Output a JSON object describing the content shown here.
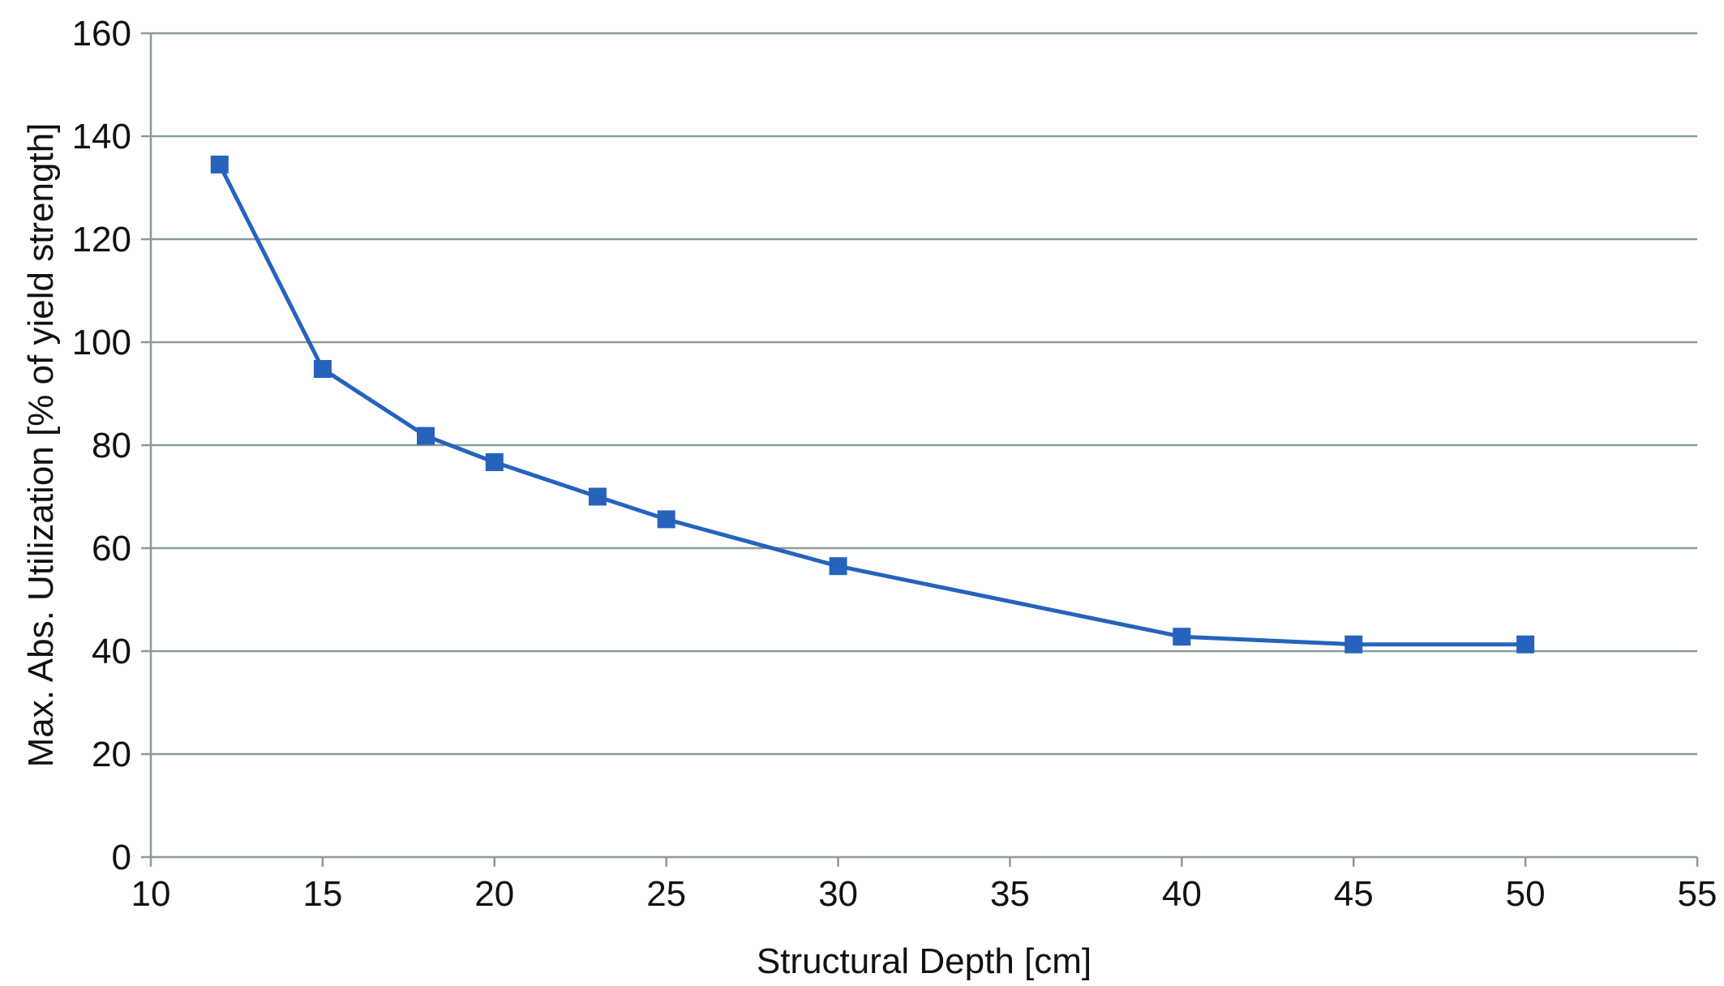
{
  "chart_data": {
    "type": "line",
    "title": "",
    "xlabel": "Structural Depth [cm]",
    "ylabel": "Max. Abs. Utilization [% of yield strength]",
    "xlim": [
      10,
      55
    ],
    "ylim": [
      0,
      160
    ],
    "xticks": [
      10,
      15,
      20,
      25,
      30,
      35,
      40,
      45,
      50,
      55
    ],
    "yticks": [
      0,
      20,
      40,
      60,
      80,
      100,
      120,
      140,
      160
    ],
    "grid": "horizontal",
    "legend": "none",
    "series_color": "#2563bd",
    "grid_color": "#8a9a9a",
    "series": [
      {
        "x": [
          12,
          15,
          18,
          20,
          23,
          25,
          30,
          40,
          45,
          50
        ],
        "y": [
          134.5,
          94.8,
          81.8,
          76.7,
          70.0,
          65.6,
          56.5,
          42.8,
          41.3,
          41.3
        ]
      }
    ]
  }
}
